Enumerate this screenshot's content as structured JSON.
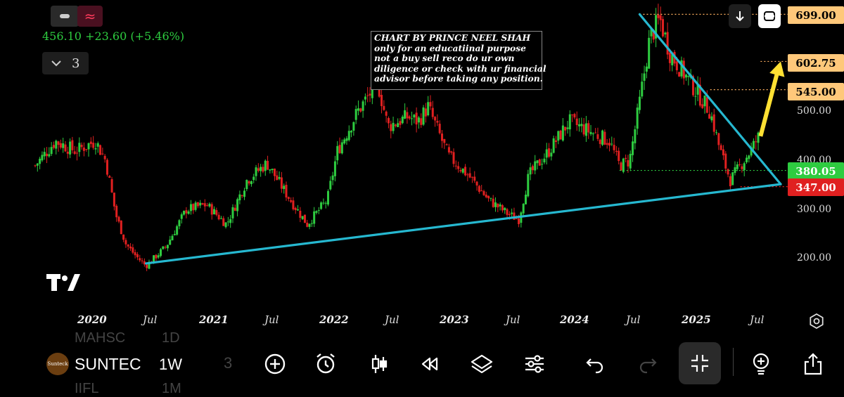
{
  "header": {
    "quote": "456.10 +23.60 (+5.46%)",
    "collapse_count": "3"
  },
  "annotation": {
    "lines": [
      "CHART BY PRINCE NEEL SHAH",
      "only for an educatiinal purpose",
      "not a buy sell reco do ur own",
      "diligence or check with ur financial",
      "advisor before taking any position."
    ]
  },
  "price_tags": [
    {
      "label": "699.00",
      "value": 699,
      "color": "#ffc87a",
      "text_color": "#000"
    },
    {
      "label": "602.75",
      "value": 602.75,
      "color": "#ffc87a",
      "text_color": "#000"
    },
    {
      "label": "545.00",
      "value": 545,
      "color": "#ffc87a",
      "text_color": "#000"
    },
    {
      "label": "380.05",
      "value": 380.05,
      "color": "#2ecc40",
      "text_color": "#fff"
    },
    {
      "label": "347.00",
      "value": 347,
      "color": "#e02020",
      "text_color": "#fff"
    }
  ],
  "chart_data": {
    "type": "candlestick",
    "ticker": "SUNTECK",
    "interval": "1W",
    "y_ticks": [
      {
        "label": "500.00",
        "value": 500
      },
      {
        "label": "400.00",
        "value": 400
      },
      {
        "label": "300.00",
        "value": 300
      },
      {
        "label": "200.00",
        "value": 200
      }
    ],
    "x_ticks": [
      {
        "label": "2020",
        "year": true
      },
      {
        "label": "Jul",
        "year": false
      },
      {
        "label": "2021",
        "year": true
      },
      {
        "label": "Jul",
        "year": false
      },
      {
        "label": "2022",
        "year": true
      },
      {
        "label": "Jul",
        "year": false
      },
      {
        "label": "2023",
        "year": true
      },
      {
        "label": "Jul",
        "year": false
      },
      {
        "label": "2024",
        "year": true
      },
      {
        "label": "Jul",
        "year": false
      },
      {
        "label": "2025",
        "year": true
      },
      {
        "label": "Jul",
        "year": false
      }
    ],
    "x_start": "2019-07",
    "x_end": "2025-09",
    "ylim": [
      150,
      720
    ],
    "price_path": [
      [
        "2019-07",
        390
      ],
      [
        "2019-09",
        440
      ],
      [
        "2019-11",
        420
      ],
      [
        "2020-01",
        440
      ],
      [
        "2020-02",
        400
      ],
      [
        "2020-03",
        290
      ],
      [
        "2020-04",
        230
      ],
      [
        "2020-05",
        205
      ],
      [
        "2020-06",
        185
      ],
      [
        "2020-08",
        225
      ],
      [
        "2020-10",
        300
      ],
      [
        "2020-12",
        310
      ],
      [
        "2021-02",
        270
      ],
      [
        "2021-04",
        360
      ],
      [
        "2021-06",
        395
      ],
      [
        "2021-08",
        330
      ],
      [
        "2021-10",
        270
      ],
      [
        "2021-12",
        320
      ],
      [
        "2022-01",
        420
      ],
      [
        "2022-03",
        500
      ],
      [
        "2022-05",
        560
      ],
      [
        "2022-06",
        470
      ],
      [
        "2022-08",
        490
      ],
      [
        "2022-09",
        480
      ],
      [
        "2022-10",
        510
      ],
      [
        "2022-12",
        410
      ],
      [
        "2023-02",
        370
      ],
      [
        "2023-04",
        320
      ],
      [
        "2023-06",
        290
      ],
      [
        "2023-07",
        280
      ],
      [
        "2023-08",
        370
      ],
      [
        "2023-10",
        420
      ],
      [
        "2023-12",
        480
      ],
      [
        "2024-02",
        460
      ],
      [
        "2024-04",
        440
      ],
      [
        "2024-05",
        390
      ],
      [
        "2024-06",
        400
      ],
      [
        "2024-07",
        520
      ],
      [
        "2024-08",
        650
      ],
      [
        "2024-09",
        690
      ],
      [
        "2024-10",
        620
      ],
      [
        "2024-12",
        560
      ],
      [
        "2025-02",
        500
      ],
      [
        "2025-03",
        420
      ],
      [
        "2025-04",
        360
      ],
      [
        "2025-05",
        390
      ],
      [
        "2025-06",
        420
      ],
      [
        "2025-07",
        456
      ]
    ],
    "trendlines": [
      {
        "from": [
          "2020-06",
          190
        ],
        "to": [
          "2025-09",
          352
        ],
        "color": "#26b8d0"
      },
      {
        "from": [
          "2024-07",
          699
        ],
        "to": [
          "2025-09",
          352
        ],
        "color": "#26b8d0"
      }
    ],
    "reference_levels": [
      {
        "value": 699,
        "from": "2024-07",
        "style": "dotted",
        "color": "#ffb060"
      },
      {
        "value": 602.75,
        "from": "2025-07",
        "style": "dotted",
        "color": "#ffb060"
      },
      {
        "value": 545,
        "from": "2025-02",
        "style": "dotted",
        "color": "#ffb060"
      },
      {
        "value": 380.05,
        "from": "2024-05",
        "style": "dotted",
        "color": "#2ecc40"
      },
      {
        "value": 347,
        "from": "2025-05",
        "style": "dotted",
        "color": "#e02020"
      }
    ],
    "projection_arrow": {
      "from": [
        "2025-07",
        450
      ],
      "to": [
        "2025-09",
        602.75
      ],
      "color": "#ffe033"
    },
    "up_color": "#2ecc40",
    "down_color": "#e02020"
  },
  "toolbar": {
    "symbol": "SUNTECK",
    "symbol_display": "SUNTEC",
    "logo_text": "Sunteck",
    "interval": "1W",
    "ghost_above": "MAHSC",
    "ghost_above_interval": "1D",
    "ghost_below": "IIFL",
    "ghost_below_interval": "1M"
  },
  "icons": {
    "minus": "minus-icon",
    "wave": "wave-icon",
    "download": "arrow-down-icon",
    "fullscreen": "frame-icon",
    "settings": "settings-gear-icon",
    "add": "add-circle-icon",
    "alert": "alarm-clock-icon",
    "candles": "candles-icon",
    "replay": "rewind-icon",
    "layers": "layers-icon",
    "indicators": "sliders-icon",
    "undo": "undo-icon",
    "redo": "redo-icon",
    "collapse": "collapse-icon",
    "idea": "lightbulb-icon",
    "share": "share-icon",
    "brand": "tradingview-logo"
  }
}
